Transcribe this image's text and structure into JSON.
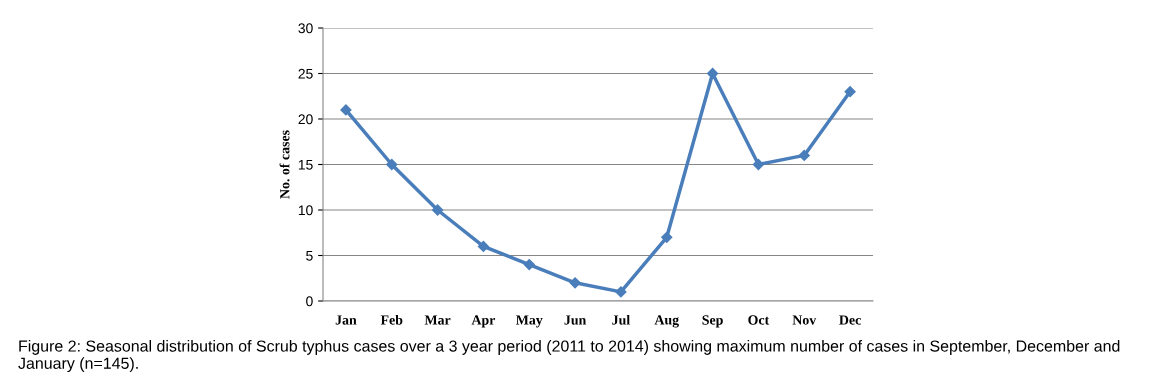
{
  "chart_data": {
    "type": "line",
    "ylabel": "No. of cases",
    "categories": [
      "Jan",
      "Feb",
      "Mar",
      "Apr",
      "May",
      "Jun",
      "Jul",
      "Aug",
      "Sep",
      "Oct",
      "Nov",
      "Dec"
    ],
    "series": [
      {
        "color": "#4a7ebb",
        "values": [
          21,
          15,
          10,
          6,
          4,
          2,
          1,
          7,
          25,
          15,
          16,
          23
        ]
      }
    ],
    "ylim": [
      0,
      30
    ],
    "yticks": [
      0,
      5,
      10,
      15,
      20,
      25,
      30
    ],
    "grid": "y",
    "marker": "diamond",
    "line_style": "solid",
    "legend": false,
    "annotations": [
      "Figure 2: Seasonal distribution of Scrub typhus cases over a 3 year period (2011 to 2014) showing maximum number of cases in September, December and January (n=145)."
    ]
  }
}
